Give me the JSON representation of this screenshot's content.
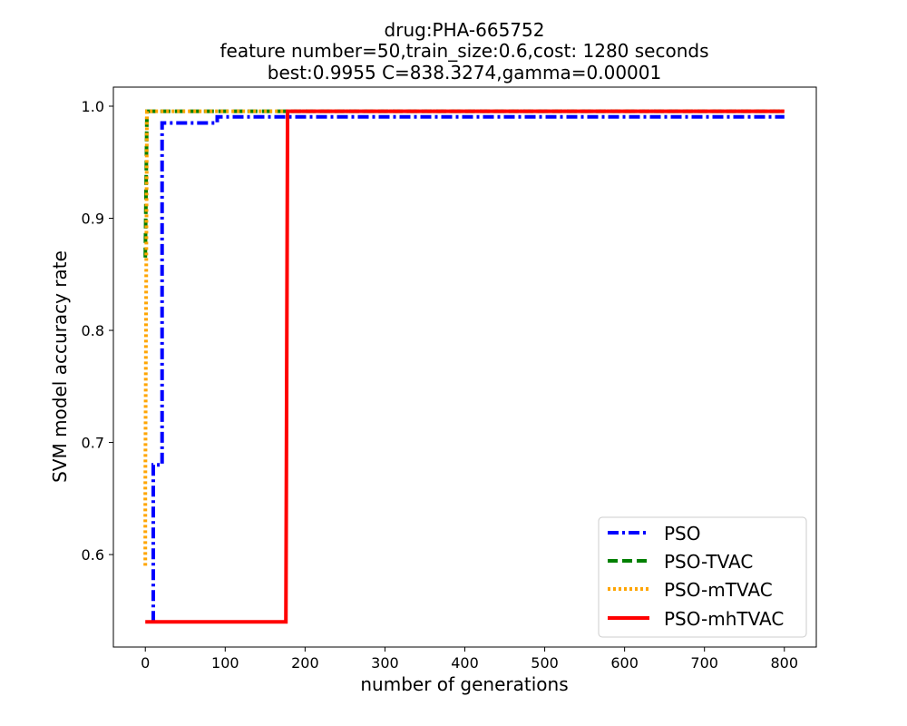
{
  "chart_data": {
    "type": "line",
    "title_lines": [
      "drug:PHA-665752",
      "feature number=50,train_size:0.6,cost: 1280 seconds",
      "best:0.9955  C=838.3274,gamma=0.00001"
    ],
    "xlabel": "number of generations",
    "ylabel": "SVM model accuracy rate",
    "xlim": [
      -40,
      840
    ],
    "ylim": [
      0.5175,
      1.017
    ],
    "xticks": [
      0,
      100,
      200,
      300,
      400,
      500,
      600,
      700,
      800
    ],
    "yticks": [
      0.6,
      0.7,
      0.8,
      0.9,
      1.0
    ],
    "ytick_labels": [
      "0.6",
      "0.7",
      "0.8",
      "0.9",
      "1.0"
    ],
    "grid": false,
    "legend_position": "lower-right",
    "series": [
      {
        "name": "PSO",
        "color": "#0000ff",
        "style": "dashdot",
        "points": [
          [
            10,
            0.54
          ],
          [
            10,
            0.68
          ],
          [
            21,
            0.68
          ],
          [
            21,
            0.985
          ],
          [
            90,
            0.985
          ],
          [
            90,
            0.9905
          ],
          [
            800,
            0.9905
          ]
        ]
      },
      {
        "name": "PSO-TVAC",
        "color": "#008000",
        "style": "dashed",
        "points": [
          [
            0,
            0.865
          ],
          [
            2,
            0.9955
          ],
          [
            800,
            0.9955
          ]
        ]
      },
      {
        "name": "PSO-mTVAC",
        "color": "#ffa500",
        "style": "dotted",
        "points": [
          [
            0,
            0.59
          ],
          [
            0,
            0.66
          ],
          [
            2,
            0.9955
          ],
          [
            800,
            0.9955
          ]
        ]
      },
      {
        "name": "PSO-mhTVAC",
        "color": "#ff0000",
        "style": "solid",
        "points": [
          [
            0,
            0.54
          ],
          [
            176,
            0.54
          ],
          [
            178,
            0.98
          ],
          [
            178,
            0.9955
          ],
          [
            800,
            0.9955
          ]
        ]
      }
    ]
  }
}
